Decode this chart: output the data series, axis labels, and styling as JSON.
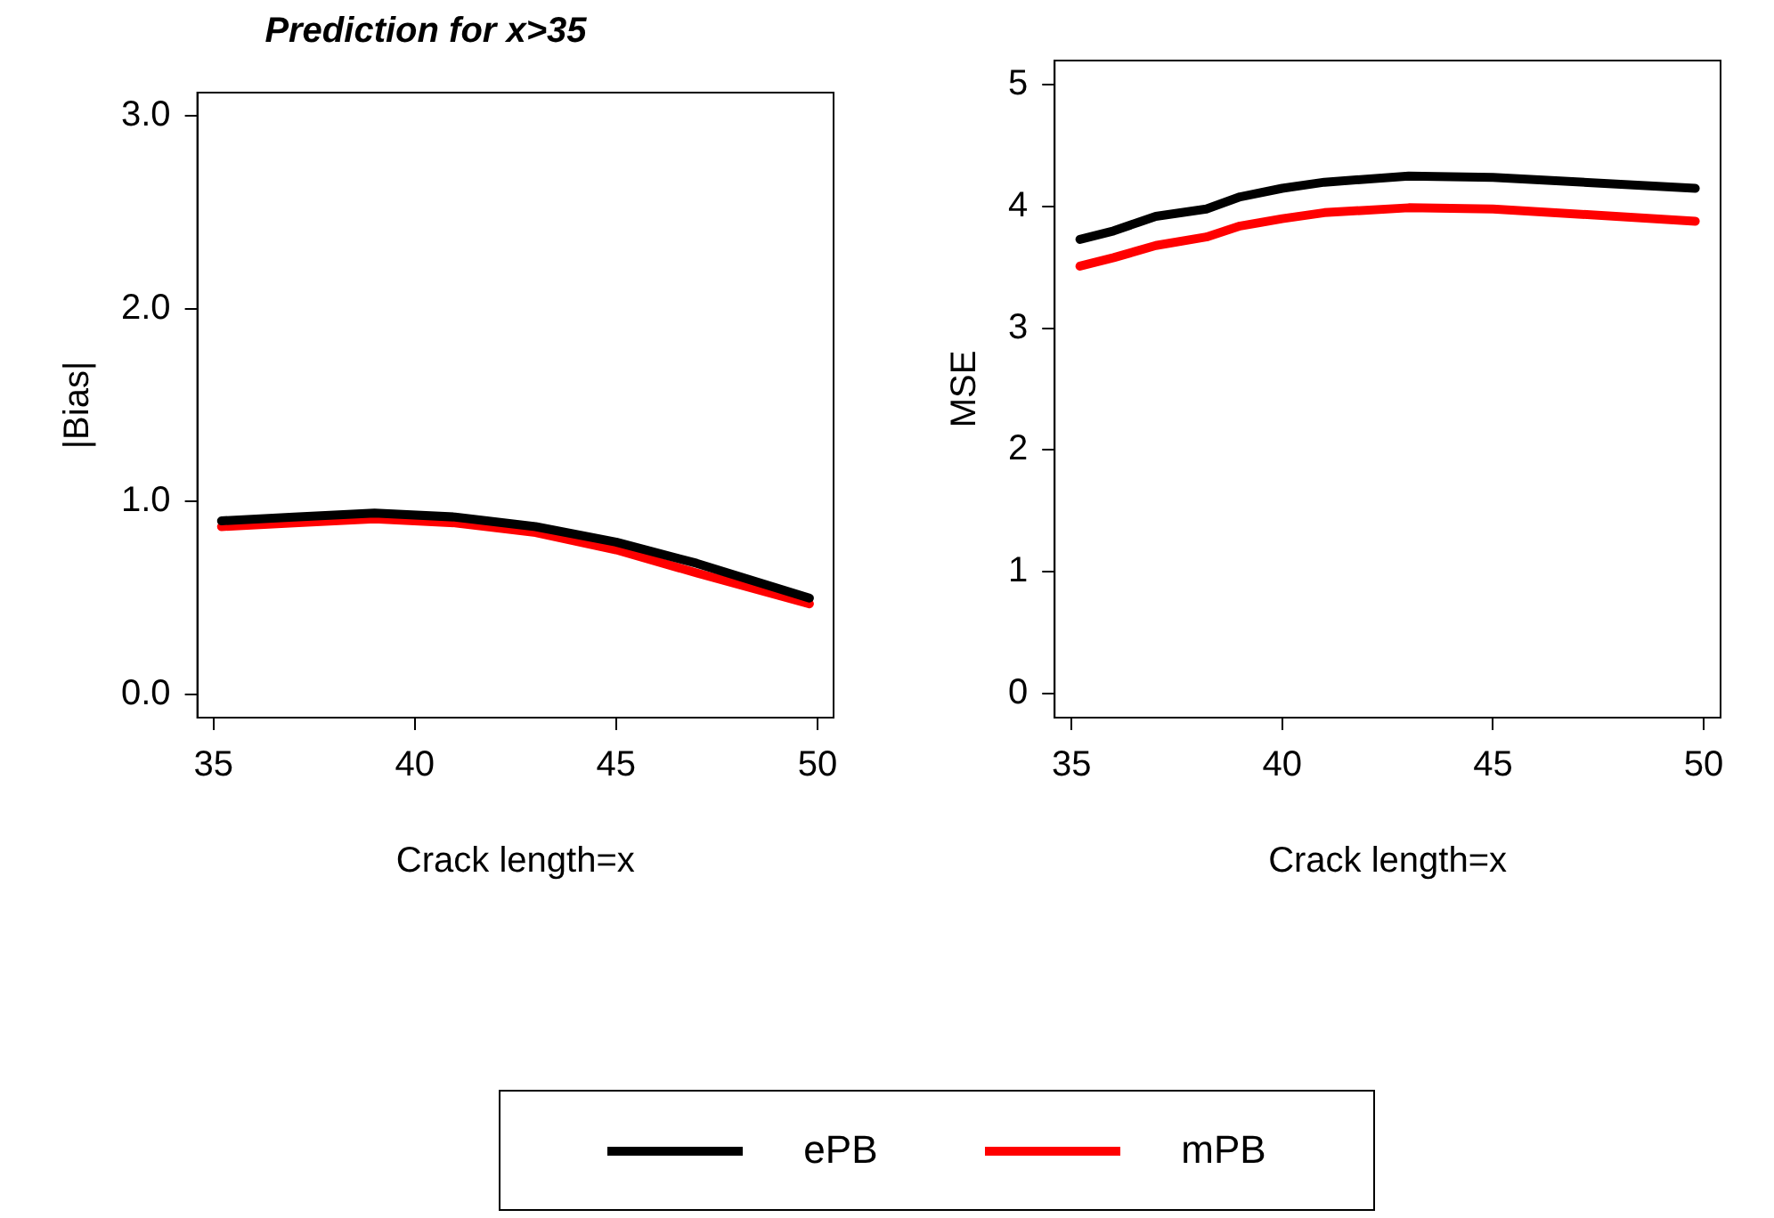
{
  "chart_data": [
    {
      "type": "line",
      "title": "Prediction for x>35",
      "xlabel": "Crack length=x",
      "ylabel": "|Bias|",
      "x": [
        35.2,
        37,
        39,
        41,
        43,
        45,
        47,
        49.8
      ],
      "series": [
        {
          "name": "ePB",
          "color": "#000000",
          "values": [
            0.9,
            0.92,
            0.94,
            0.92,
            0.87,
            0.79,
            0.68,
            0.5
          ]
        },
        {
          "name": "mPB",
          "color": "#ff0000",
          "values": [
            0.87,
            0.89,
            0.91,
            0.89,
            0.84,
            0.75,
            0.63,
            0.47
          ]
        }
      ],
      "xlim": [
        34.6,
        50.4
      ],
      "xticks": [
        35,
        40,
        45,
        50
      ],
      "ylim": [
        -0.12,
        3.12
      ],
      "yticks": [
        {
          "value": 0,
          "label": "0.0"
        },
        {
          "value": 1,
          "label": "1.0"
        },
        {
          "value": 2,
          "label": "2.0"
        },
        {
          "value": 3,
          "label": "3.0"
        }
      ],
      "grid": false,
      "legend": "bottom",
      "marker": "none",
      "line_style": "solid"
    },
    {
      "type": "line",
      "xlabel": "Crack length=x",
      "ylabel": "MSE",
      "x": [
        35.2,
        36,
        37,
        38.2,
        39,
        40,
        41,
        43,
        45,
        49.8
      ],
      "series": [
        {
          "color": "#000000",
          "values": [
            3.73,
            3.8,
            3.92,
            3.98,
            4.08,
            4.15,
            4.2,
            4.25,
            4.24,
            4.15
          ]
        },
        {
          "color": "#ff0000",
          "values": [
            3.51,
            3.58,
            3.68,
            3.75,
            3.84,
            3.9,
            3.95,
            3.99,
            3.98,
            3.88
          ]
        }
      ],
      "xlim": [
        34.6,
        50.4
      ],
      "xticks": [
        35,
        40,
        45,
        50
      ],
      "ylim": [
        -0.2,
        5.2
      ],
      "yticks": [
        0,
        1,
        2,
        3,
        4,
        5
      ],
      "grid": false,
      "marker": "none",
      "line_style": "solid"
    }
  ]
}
